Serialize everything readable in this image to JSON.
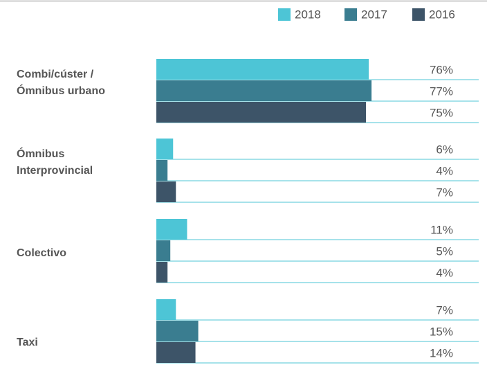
{
  "chart_data": {
    "type": "barh",
    "categories": [
      "Combi/cúster  /\nÓmnibus urbano",
      "Ómnibus\nInterprovincial",
      "Colectivo",
      "Taxi"
    ],
    "series": [
      {
        "name": "2018",
        "color": "#4dc5d6",
        "values": [
          76,
          6,
          11,
          7
        ],
        "value_labels": [
          "76%",
          "6%",
          "11%",
          "7%"
        ]
      },
      {
        "name": "2017",
        "color": "#3a7d90",
        "values": [
          77,
          4,
          5,
          15
        ],
        "value_labels": [
          "77%",
          "4%",
          "5%",
          "15%"
        ]
      },
      {
        "name": "2016",
        "color": "#3d5468",
        "values": [
          75,
          7,
          4,
          14
        ],
        "value_labels": [
          "75%",
          "7%",
          "4%",
          "14%"
        ]
      }
    ],
    "xlim": [
      0,
      100
    ]
  }
}
